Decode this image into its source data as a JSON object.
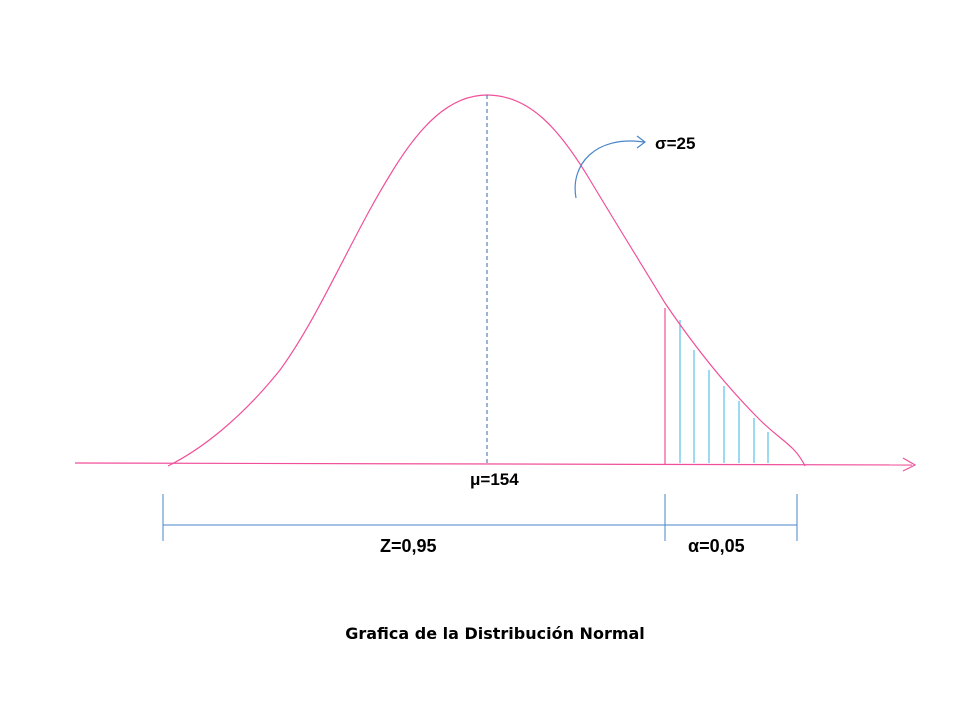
{
  "labels": {
    "mean": "μ=154",
    "sigma": "σ=25",
    "z": "Z=0,95",
    "alpha": "α=0,05"
  },
  "caption": "Grafica de la Distribución Normal",
  "colors": {
    "curve": "#f0509a",
    "axis": "#f0509a",
    "hatch": "#3ab4e6",
    "bracket": "#4a86c8",
    "mean_line": "#3a6aa8",
    "sigma_arrow": "#4a86c8"
  }
}
